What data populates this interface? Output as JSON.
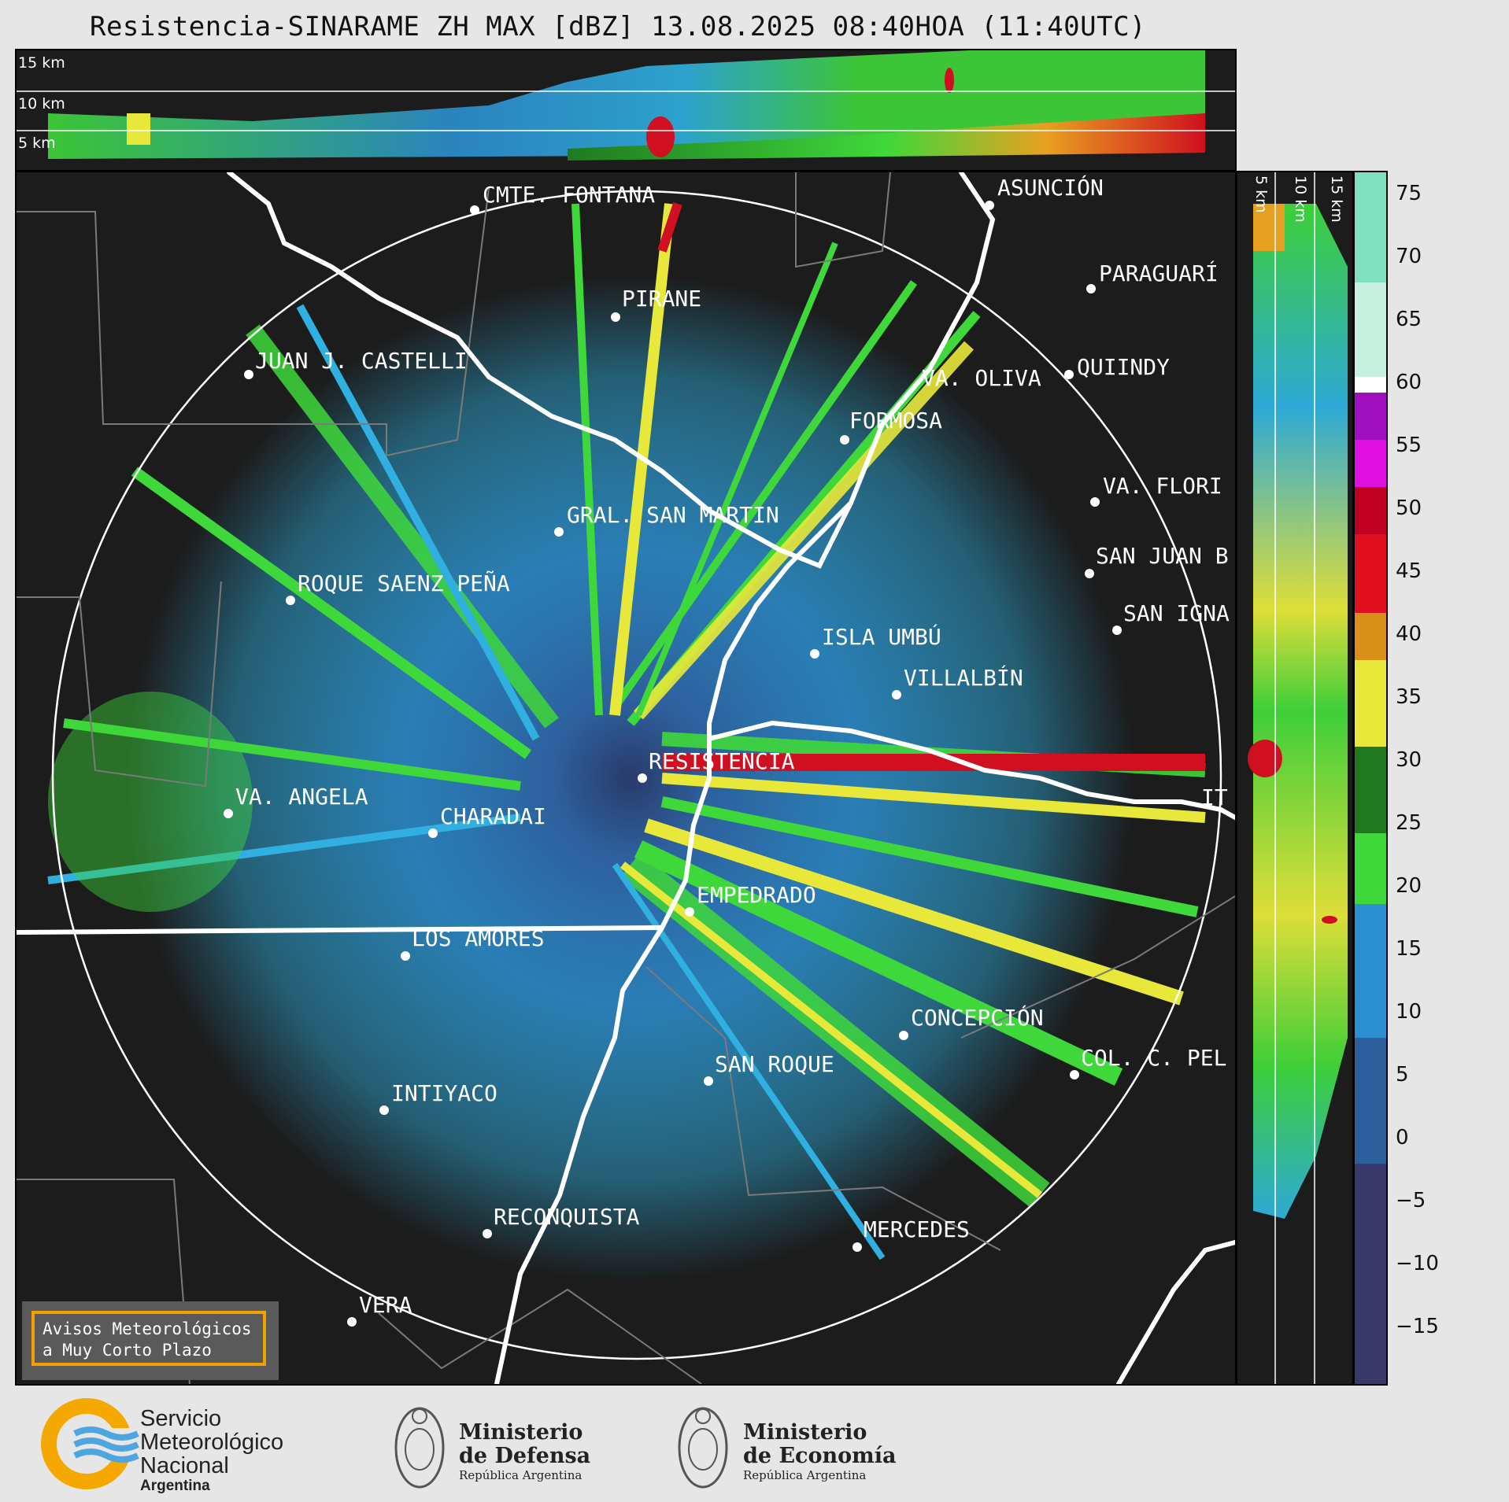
{
  "title": "Resistencia-SINARAME ZH MAX [dBZ] 13.08.2025 08:40HOA (11:40UTC)",
  "top_panel": {
    "heights": [
      "15 km",
      "10 km",
      "5 km"
    ]
  },
  "right_panel": {
    "heights": [
      "5 km",
      "10 km",
      "15 km"
    ]
  },
  "colorbar": {
    "ticks": [
      "75",
      "70",
      "65",
      "60",
      "55",
      "50",
      "45",
      "40",
      "35",
      "30",
      "25",
      "20",
      "15",
      "10",
      "5",
      "0",
      "−5",
      "−10",
      "−15"
    ],
    "colors": {
      "low": "#3a3a6a",
      "blue": "#2c8fd0",
      "lightblue": "#2fb0e0",
      "green": "#3fd83a",
      "darkgreen": "#1f7a1f",
      "yellow": "#e8e83a",
      "orange": "#d8901a",
      "red": "#d01020",
      "magenta": "#e010e0",
      "white": "#ffffff",
      "teal": "#80e0c0"
    }
  },
  "cities": [
    {
      "name": "CMTE. FONTANA"
    },
    {
      "name": "ASUNCIÓN"
    },
    {
      "name": "PARAGUARÍ"
    },
    {
      "name": "PIRANE"
    },
    {
      "name": "JUAN J. CASTELLI"
    },
    {
      "name": "VA. OLIVA"
    },
    {
      "name": "QUIINDY"
    },
    {
      "name": "FORMOSA"
    },
    {
      "name": "VA. FLORI"
    },
    {
      "name": "GRAL. SAN MARTIN"
    },
    {
      "name": "SAN JUAN B"
    },
    {
      "name": "ROQUE SAENZ PEÑA"
    },
    {
      "name": "SAN IGNA"
    },
    {
      "name": "ISLA UMBÚ"
    },
    {
      "name": "VILLALBÍN"
    },
    {
      "name": "RESISTENCIA"
    },
    {
      "name": "VA. ANGELA"
    },
    {
      "name": "CHARADAI"
    },
    {
      "name": "IT"
    },
    {
      "name": "EMPEDRADO"
    },
    {
      "name": "LOS AMORES"
    },
    {
      "name": "CONCEPCIÓN"
    },
    {
      "name": "SAN ROQUE"
    },
    {
      "name": "COL. C. PEL"
    },
    {
      "name": "INTIYACO"
    },
    {
      "name": "RECONQUISTA"
    },
    {
      "name": "MERCEDES"
    },
    {
      "name": "VERA"
    }
  ],
  "warning_box": {
    "line1": "Avisos Meteorológicos",
    "line2": "a Muy Corto Plazo"
  },
  "footer": {
    "smn": {
      "line1": "Servicio",
      "line2": "Meteorológico",
      "line3": "Nacional",
      "line4": "Argentina"
    },
    "defensa": {
      "line1": "Ministerio",
      "line2": "de Defensa",
      "line3": "República Argentina"
    },
    "economia": {
      "line1": "Ministerio",
      "line2": "de Economía",
      "line3": "República Argentina"
    }
  }
}
